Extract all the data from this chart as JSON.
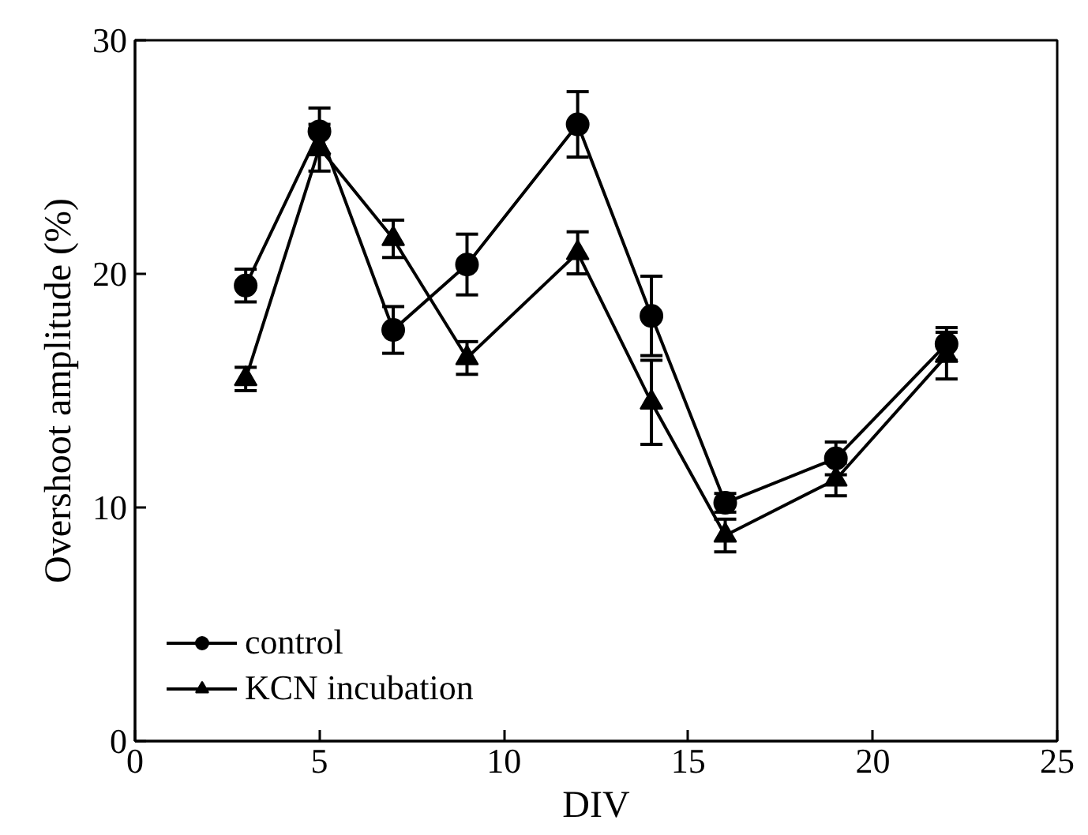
{
  "chart_data": {
    "type": "line",
    "xlabel": "DIV",
    "ylabel": "Overshoot amplitude (%)",
    "x": [
      3,
      5,
      7,
      9,
      12,
      14,
      16,
      19,
      22
    ],
    "series": [
      {
        "name": "control",
        "color": "#000000",
        "marker": "circle",
        "values": [
          19.5,
          26.1,
          17.6,
          20.4,
          26.4,
          18.2,
          10.2,
          12.1,
          17.0
        ],
        "errors": [
          0.7,
          1.0,
          1.0,
          1.3,
          1.4,
          1.7,
          0.4,
          0.7,
          0.7
        ]
      },
      {
        "name": "KCN incubation",
        "color": "#000000",
        "marker": "triangle",
        "values": [
          15.5,
          25.4,
          21.5,
          16.4,
          20.9,
          14.5,
          8.8,
          11.2,
          16.5
        ],
        "errors": [
          0.5,
          1.0,
          0.8,
          0.7,
          0.9,
          1.8,
          0.7,
          0.7,
          1.0
        ]
      }
    ],
    "xlim": [
      0,
      25
    ],
    "xticks": [
      0,
      5,
      10,
      15,
      20,
      25
    ],
    "ylim": [
      0,
      30
    ],
    "yticks": [
      0,
      10,
      20,
      30
    ],
    "grid": false,
    "legend": "bottom left",
    "line_style": "solid"
  }
}
